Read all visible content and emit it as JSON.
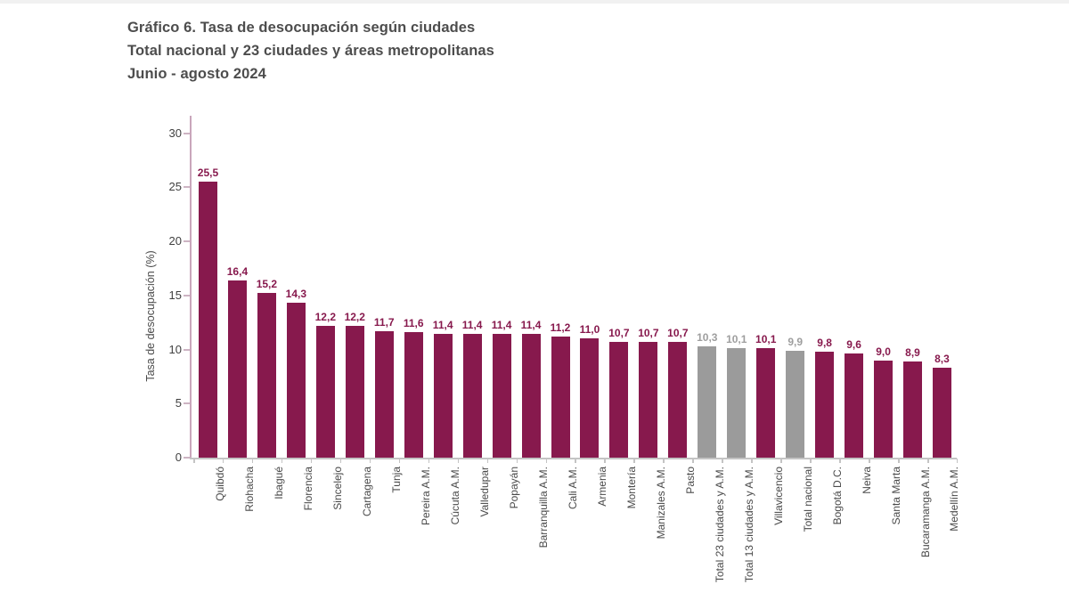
{
  "chart_data": {
    "type": "bar",
    "title": "Gráfico 6. Tasa de desocupación según ciudades",
    "subtitle": "Total nacional y 23 ciudades y áreas metropolitanas",
    "period": "Junio - agosto 2024",
    "ylabel": "Tasa de desocupación (%)",
    "xlabel": "",
    "ylim": [
      0,
      30
    ],
    "yticks": [
      0,
      5,
      10,
      15,
      20,
      25,
      30
    ],
    "grid": false,
    "legend_position": "none",
    "decimal_separator": ",",
    "bar_color_city": "#87194d",
    "bar_color_total": "#9b9b9b",
    "value_label_color_city": "#87194d",
    "value_label_color_total": "#9e9e9e",
    "categories": [
      "Quibdó",
      "Riohacha",
      "Ibagué",
      "Florencia",
      "Sincelejo",
      "Cartagena",
      "Tunja",
      "Pereira A.M.",
      "Cúcuta A.M.",
      "Valledupar",
      "Popayán",
      "Barranquilla A.M.",
      "Cali A.M.",
      "Armenia",
      "Montería",
      "Manizales A.M.",
      "Pasto",
      "Total 23 ciudades y A.M.",
      "Total 13 ciudades y A.M.",
      "Villavicencio",
      "Total nacional",
      "Bogotá D.C.",
      "Neiva",
      "Santa Marta",
      "Bucaramanga A.M.",
      "Medellín A.M."
    ],
    "values": [
      25.5,
      16.4,
      15.2,
      14.3,
      12.2,
      12.2,
      11.7,
      11.6,
      11.4,
      11.4,
      11.4,
      11.4,
      11.2,
      11.0,
      10.7,
      10.7,
      10.7,
      10.3,
      10.1,
      10.1,
      9.9,
      9.8,
      9.6,
      9.0,
      8.9,
      8.3
    ],
    "value_labels": [
      "25,5",
      "16,4",
      "15,2",
      "14,3",
      "12,2",
      "12,2",
      "11,7",
      "11,6",
      "11,4",
      "11,4",
      "11,4",
      "11,4",
      "11,2",
      "11,0",
      "10,7",
      "10,7",
      "10,7",
      "10,3",
      "10,1",
      "10,1",
      "9,9",
      "9,8",
      "9,6",
      "9,0",
      "8,9",
      "8,3"
    ],
    "bar_types": [
      "city",
      "city",
      "city",
      "city",
      "city",
      "city",
      "city",
      "city",
      "city",
      "city",
      "city",
      "city",
      "city",
      "city",
      "city",
      "city",
      "city",
      "total",
      "total",
      "city",
      "total",
      "city",
      "city",
      "city",
      "city",
      "city"
    ]
  }
}
